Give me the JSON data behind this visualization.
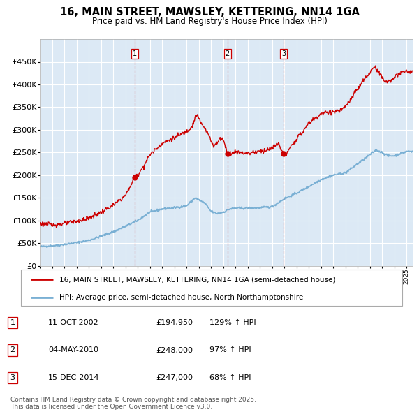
{
  "title": "16, MAIN STREET, MAWSLEY, KETTERING, NN14 1GA",
  "subtitle": "Price paid vs. HM Land Registry's House Price Index (HPI)",
  "plot_bg_color": "#dce9f5",
  "ylim": [
    0,
    500000
  ],
  "yticks": [
    0,
    50000,
    100000,
    150000,
    200000,
    250000,
    300000,
    350000,
    400000,
    450000
  ],
  "ytick_labels": [
    "£0",
    "£50K",
    "£100K",
    "£150K",
    "£200K",
    "£250K",
    "£300K",
    "£350K",
    "£400K",
    "£450K"
  ],
  "hpi_line_color": "#7ab0d4",
  "price_line_color": "#cc0000",
  "vline_color": "#cc0000",
  "grid_color": "#ffffff",
  "legend_label_price": "16, MAIN STREET, MAWSLEY, KETTERING, NN14 1GA (semi-detached house)",
  "legend_label_hpi": "HPI: Average price, semi-detached house, North Northamptonshire",
  "sales": [
    {
      "label": "1",
      "date_x": 2002.78,
      "price": 194950,
      "hpi_pct": 129,
      "date_str": "11-OCT-2002",
      "price_str": "£194,950"
    },
    {
      "label": "2",
      "date_x": 2010.34,
      "price": 248000,
      "hpi_pct": 97,
      "date_str": "04-MAY-2010",
      "price_str": "£248,000"
    },
    {
      "label": "3",
      "date_x": 2014.96,
      "price": 247000,
      "hpi_pct": 68,
      "date_str": "15-DEC-2014",
      "price_str": "£247,000"
    }
  ],
  "footer_line1": "Contains HM Land Registry data © Crown copyright and database right 2025.",
  "footer_line2": "This data is licensed under the Open Government Licence v3.0.",
  "hpi_anchors": [
    [
      1995.0,
      42000
    ],
    [
      1996.0,
      44000
    ],
    [
      1997.0,
      47000
    ],
    [
      1998.0,
      51000
    ],
    [
      1999.0,
      56000
    ],
    [
      2000.0,
      65000
    ],
    [
      2001.0,
      75000
    ],
    [
      2002.0,
      87000
    ],
    [
      2003.0,
      100000
    ],
    [
      2004.0,
      118000
    ],
    [
      2005.0,
      125000
    ],
    [
      2006.0,
      128000
    ],
    [
      2007.0,
      132000
    ],
    [
      2007.7,
      150000
    ],
    [
      2008.5,
      138000
    ],
    [
      2009.0,
      120000
    ],
    [
      2009.5,
      115000
    ],
    [
      2010.0,
      118000
    ],
    [
      2010.5,
      125000
    ],
    [
      2011.0,
      127000
    ],
    [
      2012.0,
      127000
    ],
    [
      2013.0,
      128000
    ],
    [
      2014.0,
      130000
    ],
    [
      2015.0,
      148000
    ],
    [
      2016.0,
      160000
    ],
    [
      2017.0,
      175000
    ],
    [
      2018.0,
      190000
    ],
    [
      2019.0,
      200000
    ],
    [
      2020.0,
      205000
    ],
    [
      2021.0,
      225000
    ],
    [
      2022.0,
      245000
    ],
    [
      2022.5,
      255000
    ],
    [
      2023.0,
      250000
    ],
    [
      2023.5,
      242000
    ],
    [
      2024.0,
      243000
    ],
    [
      2024.5,
      248000
    ],
    [
      2025.0,
      252000
    ]
  ],
  "price_anchors": [
    [
      1995.0,
      93000
    ],
    [
      1996.0,
      90000
    ],
    [
      1997.0,
      93000
    ],
    [
      1998.0,
      98000
    ],
    [
      1999.0,
      105000
    ],
    [
      2000.0,
      118000
    ],
    [
      2001.0,
      133000
    ],
    [
      2002.0,
      155000
    ],
    [
      2002.78,
      194950
    ],
    [
      2003.0,
      200000
    ],
    [
      2003.5,
      220000
    ],
    [
      2004.0,
      245000
    ],
    [
      2005.0,
      270000
    ],
    [
      2006.0,
      282000
    ],
    [
      2007.0,
      296000
    ],
    [
      2007.5,
      310000
    ],
    [
      2007.8,
      335000
    ],
    [
      2008.3,
      310000
    ],
    [
      2008.8,
      290000
    ],
    [
      2009.2,
      265000
    ],
    [
      2009.5,
      270000
    ],
    [
      2009.7,
      280000
    ],
    [
      2010.0,
      280000
    ],
    [
      2010.34,
      248000
    ],
    [
      2010.5,
      247000
    ],
    [
      2010.8,
      249000
    ],
    [
      2011.0,
      252000
    ],
    [
      2011.5,
      250000
    ],
    [
      2012.0,
      248000
    ],
    [
      2012.5,
      251000
    ],
    [
      2013.0,
      253000
    ],
    [
      2013.5,
      255000
    ],
    [
      2014.0,
      260000
    ],
    [
      2014.5,
      270000
    ],
    [
      2014.96,
      247000
    ],
    [
      2015.2,
      248000
    ],
    [
      2015.5,
      260000
    ],
    [
      2016.0,
      280000
    ],
    [
      2016.5,
      295000
    ],
    [
      2017.0,
      315000
    ],
    [
      2017.5,
      325000
    ],
    [
      2018.0,
      335000
    ],
    [
      2018.5,
      338000
    ],
    [
      2019.0,
      340000
    ],
    [
      2019.5,
      342000
    ],
    [
      2020.0,
      350000
    ],
    [
      2020.5,
      370000
    ],
    [
      2021.0,
      390000
    ],
    [
      2021.5,
      410000
    ],
    [
      2022.0,
      425000
    ],
    [
      2022.3,
      440000
    ],
    [
      2022.7,
      430000
    ],
    [
      2023.0,
      415000
    ],
    [
      2023.3,
      405000
    ],
    [
      2023.7,
      410000
    ],
    [
      2024.0,
      415000
    ],
    [
      2024.5,
      425000
    ],
    [
      2025.0,
      430000
    ],
    [
      2025.3,
      428000
    ]
  ],
  "xmin": 1995.0,
  "xmax": 2025.5
}
